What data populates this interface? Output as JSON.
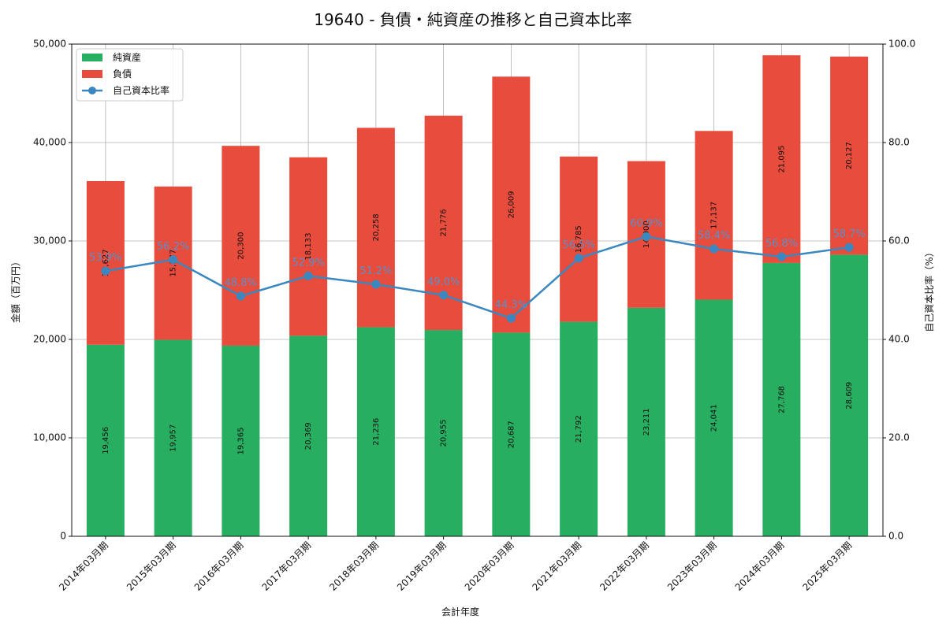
{
  "chart_data": {
    "type": "bar",
    "title": "19640 - 負債・純資産の推移と自己資本比率",
    "xlabel": "会計年度",
    "ylabel": "金額（百万円）",
    "y2label": "自己資本比率（%）",
    "ylim": [
      0,
      50000
    ],
    "y2lim": [
      0,
      100
    ],
    "yticks": [
      "0",
      "10,000",
      "20,000",
      "30,000",
      "40,000",
      "50,000"
    ],
    "y2ticks": [
      "0.0",
      "20.0",
      "40.0",
      "60.0",
      "80.0",
      "100.0"
    ],
    "grid": true,
    "legend_position": "top-left",
    "categories": [
      "2014年03月期",
      "2015年03月期",
      "2016年03月期",
      "2017年03月期",
      "2018年03月期",
      "2019年03月期",
      "2020年03月期",
      "2021年03月期",
      "2022年03月期",
      "2023年03月期",
      "2024年03月期",
      "2025年03月期"
    ],
    "series": [
      {
        "name": "純資産",
        "kind": "bar",
        "color": "#27ae60",
        "values": [
          19456,
          19957,
          19365,
          20369,
          21236,
          20955,
          20687,
          21792,
          23211,
          24041,
          27768,
          28609
        ],
        "labels": [
          "19,456",
          "19,957",
          "19,365",
          "20,369",
          "21,236",
          "20,955",
          "20,687",
          "21,792",
          "23,211",
          "24,041",
          "27,768",
          "28,609"
        ]
      },
      {
        "name": "負債",
        "kind": "bar",
        "color": "#e74c3c",
        "values": [
          16627,
          15577,
          20300,
          18133,
          20258,
          21776,
          26009,
          16785,
          14900,
          17137,
          21095,
          20127
        ],
        "labels": [
          "16,627",
          "15,577",
          "20,300",
          "18,133",
          "20,258",
          "21,776",
          "26,009",
          "16,785",
          "14,900",
          "17,137",
          "21,095",
          "20,127"
        ]
      },
      {
        "name": "自己資本比率",
        "kind": "line",
        "color": "#3b87c0",
        "values": [
          53.9,
          56.2,
          48.8,
          52.9,
          51.2,
          49.0,
          44.3,
          56.5,
          60.9,
          58.4,
          56.8,
          58.7
        ],
        "labels": [
          "53.9%",
          "56.2%",
          "48.8%",
          "52.9%",
          "51.2%",
          "49.0%",
          "44.3%",
          "56.5%",
          "60.9%",
          "58.4%",
          "56.8%",
          "58.7%"
        ]
      }
    ]
  }
}
